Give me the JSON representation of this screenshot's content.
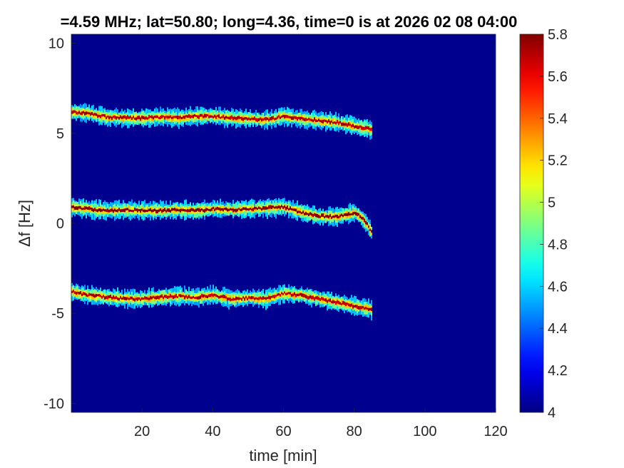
{
  "chart_data": {
    "type": "heatmap",
    "title": "=4.59 MHz;  lat=50.80; long=4.36, time=0 is at 2026 02 08 04:00",
    "xlabel": "time [min]",
    "ylabel": "Δf [Hz]",
    "xlim": [
      0,
      120
    ],
    "ylim": [
      -10.5,
      10.5
    ],
    "x_ticks": [
      20,
      40,
      60,
      80,
      100,
      120
    ],
    "y_ticks": [
      -10,
      -5,
      0,
      5,
      10
    ],
    "colorbar": {
      "range": [
        4,
        5.8
      ],
      "ticks": [
        4,
        4.2,
        4.4,
        4.6,
        4.8,
        5,
        5.2,
        5.4,
        5.6,
        5.8
      ],
      "colormap": "jet"
    },
    "background_value": 4.05,
    "series": [
      {
        "t": [
          0,
          5,
          10,
          15,
          20,
          25,
          30,
          35,
          40,
          45,
          50,
          55,
          60,
          65,
          70,
          75,
          80,
          85
        ],
        "freq": [
          6.2,
          6.1,
          5.9,
          5.85,
          5.85,
          5.9,
          5.85,
          5.95,
          5.95,
          5.85,
          5.8,
          5.75,
          5.95,
          5.8,
          5.7,
          5.6,
          5.4,
          5.2
        ],
        "peak": 5.7
      },
      {
        "t": [
          0,
          5,
          10,
          15,
          20,
          25,
          30,
          35,
          40,
          45,
          50,
          55,
          60,
          65,
          70,
          75,
          80,
          82,
          84,
          85
        ],
        "freq": [
          0.9,
          0.8,
          0.7,
          0.75,
          0.7,
          0.7,
          0.75,
          0.7,
          0.8,
          0.75,
          0.8,
          0.85,
          0.9,
          0.6,
          0.4,
          0.35,
          0.6,
          0.3,
          -0.2,
          -0.6
        ],
        "peak": 5.8
      },
      {
        "t": [
          0,
          5,
          10,
          15,
          20,
          25,
          30,
          35,
          40,
          45,
          50,
          55,
          60,
          65,
          70,
          75,
          80,
          85
        ],
        "freq": [
          -3.8,
          -4.0,
          -4.1,
          -4.2,
          -4.2,
          -4.1,
          -4.05,
          -4.1,
          -4.0,
          -4.2,
          -4.15,
          -4.2,
          -3.9,
          -4.0,
          -4.2,
          -4.4,
          -4.6,
          -4.8
        ],
        "peak": 5.7
      }
    ]
  }
}
